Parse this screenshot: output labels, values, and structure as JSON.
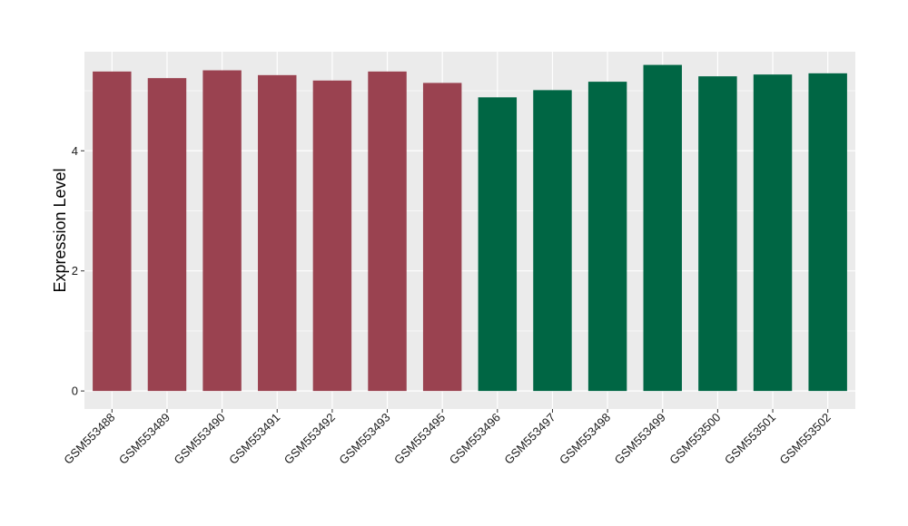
{
  "chart_data": {
    "type": "bar",
    "title": "",
    "xlabel": "",
    "ylabel": "Expression Level",
    "ylim": [
      -0.3,
      5.65
    ],
    "yticks": [
      0,
      2,
      4
    ],
    "grid": true,
    "legend": "none",
    "categories": [
      "GSM553488",
      "GSM553489",
      "GSM553490",
      "GSM553491",
      "GSM553492",
      "GSM553493",
      "GSM553495",
      "GSM553496",
      "GSM553497",
      "GSM553498",
      "GSM553499",
      "GSM553500",
      "GSM553501",
      "GSM553502"
    ],
    "values": [
      5.32,
      5.21,
      5.34,
      5.26,
      5.17,
      5.32,
      5.13,
      4.89,
      5.01,
      5.15,
      5.43,
      5.24,
      5.27,
      5.29
    ],
    "groups": [
      1,
      1,
      1,
      1,
      1,
      1,
      1,
      2,
      2,
      2,
      2,
      2,
      2,
      2
    ],
    "group_colors": {
      "1": "#9a4250",
      "2": "#006644"
    },
    "panel_background": "#ebebeb",
    "grid_color": "#ffffff"
  }
}
